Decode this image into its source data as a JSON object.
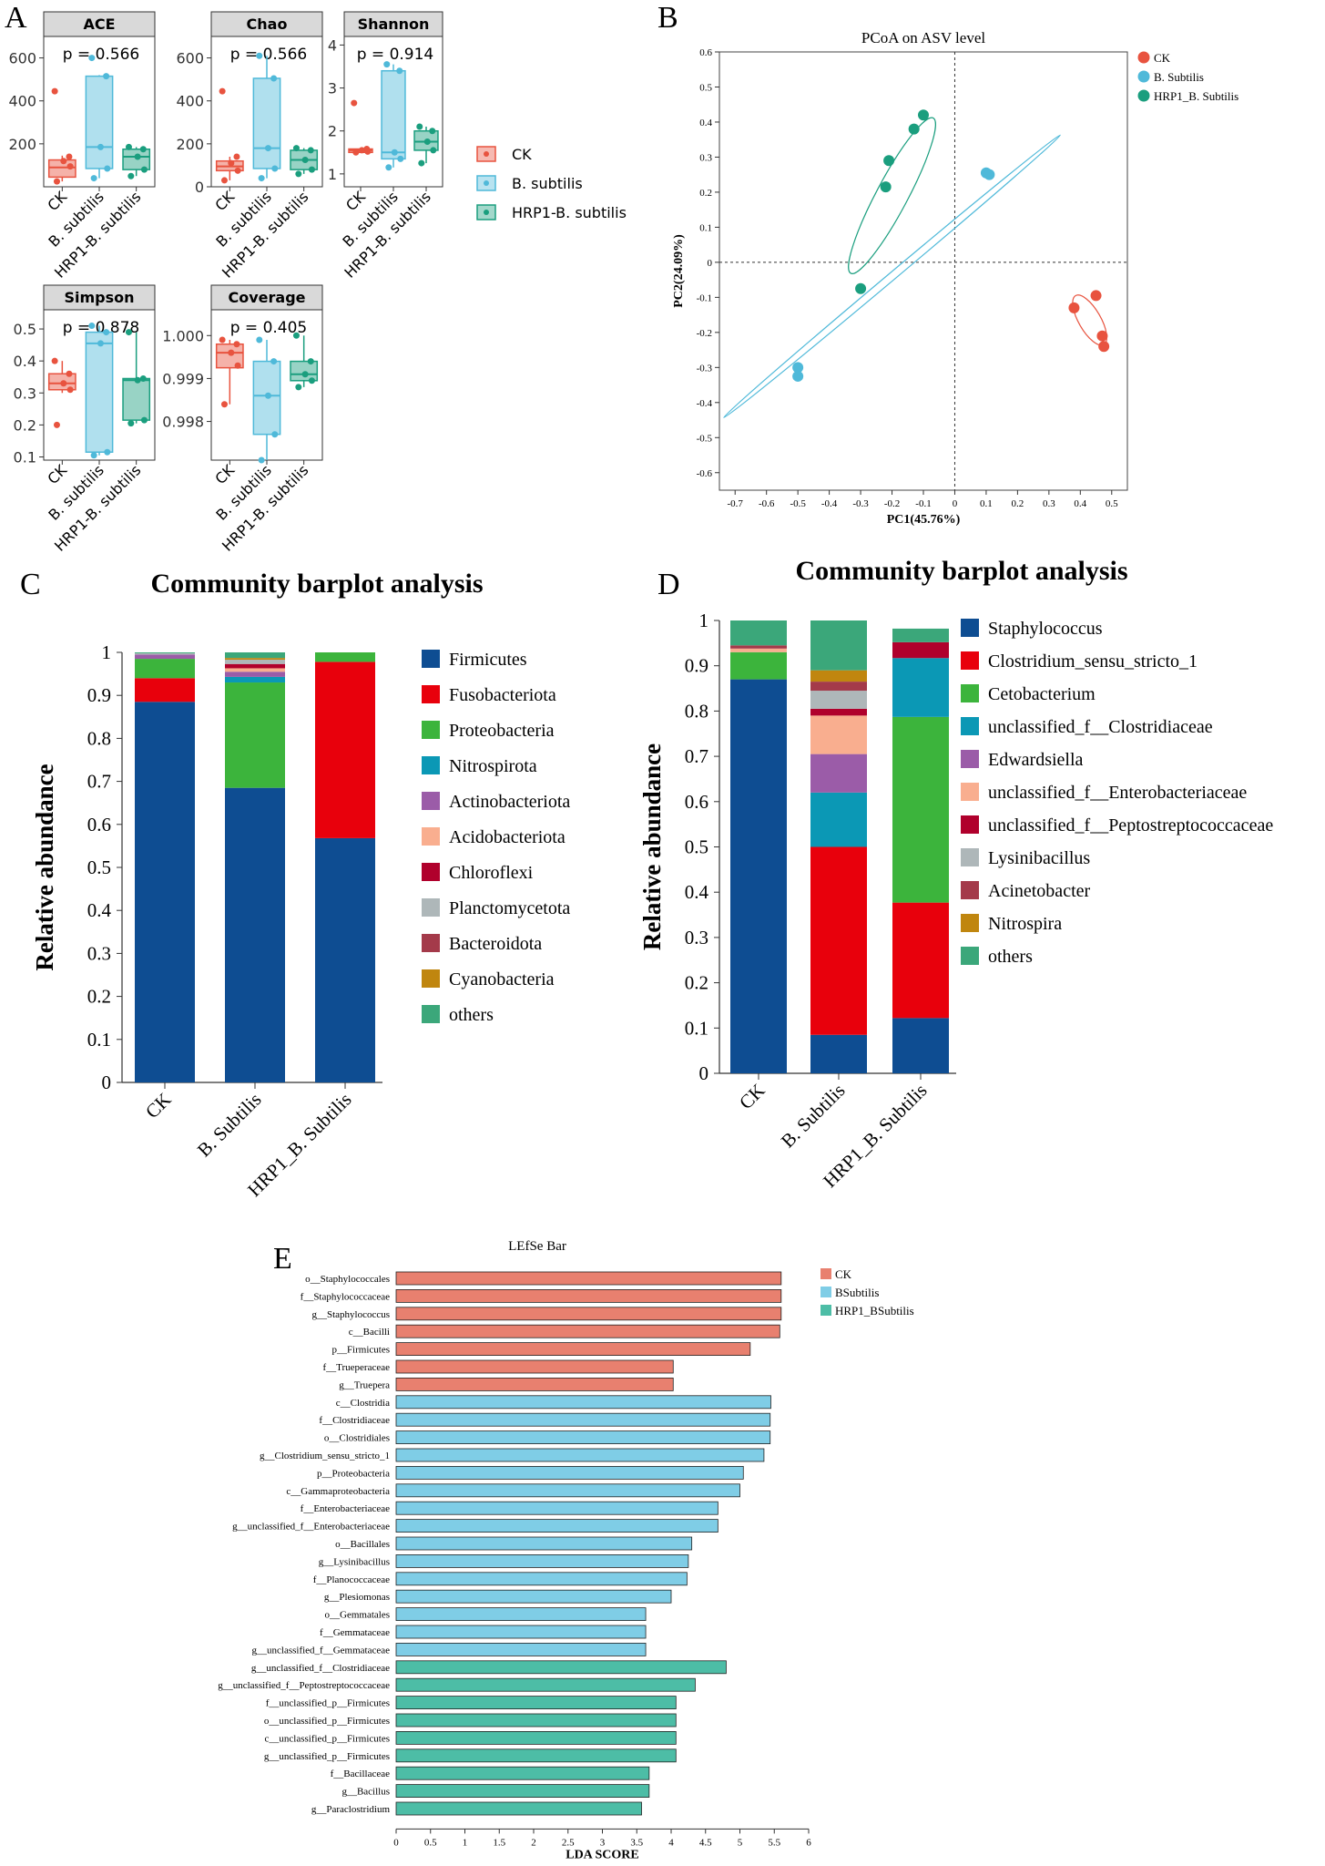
{
  "panel_labels": {
    "a": "A",
    "b": "B",
    "c": "C",
    "d": "D",
    "e": "E"
  },
  "group_colors": {
    "ck": "#E8533F",
    "bs": "#4FB9D9",
    "hrp1": "#1A9E7E"
  },
  "chart_data": [
    {
      "id": "A",
      "type": "box",
      "legend": {
        "entries": [
          "CK",
          "B. subtilis",
          "HRP1-B. subtilis"
        ]
      },
      "xticks": [
        "CK",
        "B. subtilis",
        "HRP1-B. subtilis"
      ],
      "panels": [
        {
          "title": "ACE",
          "pvalue": "p = 0.566",
          "yticks": [
            "200",
            "400",
            "600"
          ],
          "ylim": [
            0,
            700
          ],
          "boxes": [
            {
              "q1": 45,
              "med": 90,
              "q3": 125,
              "lo": 25,
              "hi": 145,
              "pts": [
                445,
                140,
                120,
                95,
                25
              ]
            },
            {
              "q1": 85,
              "med": 185,
              "q3": 515,
              "lo": 40,
              "hi": 520,
              "pts": [
                600,
                515,
                185,
                85,
                40
              ]
            },
            {
              "q1": 80,
              "med": 140,
              "q3": 175,
              "lo": 50,
              "hi": 185,
              "pts": [
                185,
                175,
                140,
                80,
                50
              ]
            }
          ]
        },
        {
          "title": "Chao",
          "pvalue": "p = 0.566",
          "yticks": [
            "0",
            "200",
            "400",
            "600"
          ],
          "ylim": [
            0,
            700
          ],
          "boxes": [
            {
              "q1": 75,
              "med": 95,
              "q3": 120,
              "lo": 30,
              "hi": 140,
              "pts": [
                445,
                140,
                110,
                75,
                30
              ]
            },
            {
              "q1": 85,
              "med": 180,
              "q3": 505,
              "lo": 40,
              "hi": 610,
              "pts": [
                610,
                505,
                180,
                85,
                40
              ]
            },
            {
              "q1": 80,
              "med": 125,
              "q3": 170,
              "lo": 60,
              "hi": 180,
              "pts": [
                180,
                170,
                125,
                80,
                60
              ]
            }
          ]
        },
        {
          "title": "Shannon",
          "pvalue": "p = 0.914",
          "yticks": [
            "1",
            "2",
            "3",
            "4"
          ],
          "ylim": [
            0.7,
            4.2
          ],
          "boxes": [
            {
              "q1": 1.5,
              "med": 1.55,
              "q3": 1.58,
              "lo": 1.5,
              "hi": 1.6,
              "pts": [
                2.65,
                1.58,
                1.55,
                1.52,
                1.5
              ]
            },
            {
              "q1": 1.35,
              "med": 1.5,
              "q3": 3.4,
              "lo": 1.15,
              "hi": 3.55,
              "pts": [
                3.55,
                3.4,
                1.5,
                1.35,
                1.15
              ]
            },
            {
              "q1": 1.55,
              "med": 1.75,
              "q3": 2.0,
              "lo": 1.25,
              "hi": 2.1,
              "pts": [
                2.1,
                2.0,
                1.75,
                1.55,
                1.25
              ]
            }
          ]
        },
        {
          "title": "Simpson",
          "pvalue": "p = 0.878",
          "yticks": [
            "0.1",
            "0.2",
            "0.3",
            "0.4",
            "0.5"
          ],
          "ylim": [
            0.09,
            0.56
          ],
          "boxes": [
            {
              "q1": 0.31,
              "med": 0.33,
              "q3": 0.36,
              "lo": 0.3,
              "hi": 0.4,
              "pts": [
                0.4,
                0.36,
                0.33,
                0.31,
                0.2
              ]
            },
            {
              "q1": 0.115,
              "med": 0.455,
              "q3": 0.49,
              "lo": 0.105,
              "hi": 0.51,
              "pts": [
                0.51,
                0.49,
                0.455,
                0.115,
                0.105
              ]
            },
            {
              "q1": 0.215,
              "med": 0.34,
              "q3": 0.345,
              "lo": 0.205,
              "hi": 0.49,
              "pts": [
                0.49,
                0.345,
                0.34,
                0.215,
                0.205
              ]
            }
          ]
        },
        {
          "title": "Coverage",
          "pvalue": "p = 0.405",
          "yticks": [
            "0.998",
            "0.999",
            "1.000"
          ],
          "ylim": [
            0.9971,
            1.0006
          ],
          "boxes": [
            {
              "q1": 0.99925,
              "med": 0.9996,
              "q3": 0.9998,
              "lo": 0.9984,
              "hi": 0.9999,
              "pts": [
                0.9999,
                0.9998,
                0.9996,
                0.9993,
                0.9984
              ]
            },
            {
              "q1": 0.9977,
              "med": 0.9986,
              "q3": 0.9994,
              "lo": 0.9971,
              "hi": 0.9999,
              "pts": [
                0.9999,
                0.9994,
                0.9986,
                0.9977,
                0.9971
              ]
            },
            {
              "q1": 0.99895,
              "med": 0.9991,
              "q3": 0.9994,
              "lo": 0.9988,
              "hi": 1.0,
              "pts": [
                1.0,
                0.9994,
                0.9991,
                0.99895,
                0.9988
              ]
            }
          ]
        }
      ]
    },
    {
      "id": "B",
      "type": "scatter",
      "title": "PCoA on ASV level",
      "xlabel": "PC1(45.76%)",
      "ylabel": "PC2(24.09%)",
      "xlim": [
        -0.75,
        0.55
      ],
      "ylim": [
        -0.65,
        0.6
      ],
      "xticks": [
        "-0.7",
        "-0.6",
        "-0.5",
        "-0.4",
        "-0.3",
        "-0.2",
        "-0.1",
        "0",
        "0.1",
        "0.2",
        "0.3",
        "0.4",
        "0.5"
      ],
      "yticks": [
        "-0.6",
        "-0.5",
        "-0.4",
        "-0.3",
        "-0.2",
        "-0.1",
        "0",
        "0.1",
        "0.2",
        "0.3",
        "0.4",
        "0.5",
        "0.6"
      ],
      "legend": [
        "CK",
        "B. Subtilis",
        "HRP1_B. Subtilis"
      ],
      "series": [
        {
          "name": "CK",
          "points": [
            [
              0.38,
              -0.13
            ],
            [
              0.45,
              -0.095
            ],
            [
              0.47,
              -0.21
            ],
            [
              0.475,
              -0.24
            ]
          ],
          "ellipse": {
            "cx": 0.43,
            "cy": -0.165,
            "rx": 0.09,
            "ry": 0.035,
            "angle": -60
          }
        },
        {
          "name": "B. Subtilis",
          "points": [
            [
              0.1,
              0.255
            ],
            [
              0.11,
              0.25
            ],
            [
              -0.5,
              -0.3
            ],
            [
              -0.5,
              -0.325
            ]
          ],
          "ellipse": {
            "cx": -0.2,
            "cy": -0.04,
            "rx": 0.7,
            "ry": 0.012,
            "angle": 40
          }
        },
        {
          "name": "HRP1_B. Subtilis",
          "points": [
            [
              -0.1,
              0.42
            ],
            [
              -0.13,
              0.38
            ],
            [
              -0.21,
              0.29
            ],
            [
              -0.22,
              0.215
            ],
            [
              -0.3,
              -0.075
            ]
          ],
          "ellipse": {
            "cx": -0.2,
            "cy": 0.19,
            "rx": 0.28,
            "ry": 0.05,
            "angle": 62
          }
        }
      ]
    },
    {
      "id": "C",
      "type": "bar",
      "stacked": true,
      "title": "Community barplot analysis",
      "ylabel": "Relative abundance",
      "ylim": [
        0,
        1
      ],
      "yticks": [
        "0",
        "0.1",
        "0.2",
        "0.3",
        "0.4",
        "0.5",
        "0.6",
        "0.7",
        "0.8",
        "0.9",
        "1"
      ],
      "categories": [
        "CK",
        "B. Subtilis",
        "HRP1_B. Subtilis"
      ],
      "series": [
        {
          "name": "Firmicutes",
          "color": "#0E4D92",
          "values": [
            0.885,
            0.685,
            0.568
          ]
        },
        {
          "name": "Fusobacteriota",
          "color": "#E8000C",
          "values": [
            0.055,
            0.0,
            0.41
          ]
        },
        {
          "name": "Proteobacteria",
          "color": "#3CB43C",
          "values": [
            0.045,
            0.245,
            0.022
          ]
        },
        {
          "name": "Nitrospirota",
          "color": "#0B98B5",
          "values": [
            0.0,
            0.013,
            0.0
          ]
        },
        {
          "name": "Actinobacteriota",
          "color": "#9B5CA8",
          "values": [
            0.01,
            0.012,
            0.0
          ]
        },
        {
          "name": "Acidobacteriota",
          "color": "#F9AE8F",
          "values": [
            0.0,
            0.008,
            0.0
          ]
        },
        {
          "name": "Chloroflexi",
          "color": "#B0002C",
          "values": [
            0.0,
            0.01,
            0.0
          ]
        },
        {
          "name": "Planctomycetota",
          "color": "#AEB7B9",
          "values": [
            0.003,
            0.01,
            0.0
          ]
        },
        {
          "name": "Bacteroidota",
          "color": "#A43A4A",
          "values": [
            0.0,
            0.0,
            0.0
          ]
        },
        {
          "name": "Cyanobacteria",
          "color": "#C0860F",
          "values": [
            0.0,
            0.004,
            0.0
          ]
        },
        {
          "name": "others",
          "color": "#3BA77A",
          "values": [
            0.002,
            0.013,
            0.0
          ]
        }
      ]
    },
    {
      "id": "D",
      "type": "bar",
      "stacked": true,
      "title": "Community barplot analysis",
      "ylabel": "Relative abundance",
      "ylim": [
        0,
        1
      ],
      "yticks": [
        "0",
        "0.1",
        "0.2",
        "0.3",
        "0.4",
        "0.5",
        "0.6",
        "0.7",
        "0.8",
        "0.9",
        "1"
      ],
      "categories": [
        "CK",
        "B. Subtilis",
        "HRP1_B. Subtilis"
      ],
      "series": [
        {
          "name": "Staphylococcus",
          "color": "#0E4D92",
          "values": [
            0.87,
            0.085,
            0.122
          ]
        },
        {
          "name": "Clostridium_sensu_stricto_1",
          "color": "#E8000C",
          "values": [
            0.0,
            0.415,
            0.255
          ]
        },
        {
          "name": "Cetobacterium",
          "color": "#3CB43C",
          "values": [
            0.06,
            0.0,
            0.41
          ]
        },
        {
          "name": "unclassified_f__Clostridiaceae",
          "color": "#0B98B5",
          "values": [
            0.0,
            0.12,
            0.13
          ]
        },
        {
          "name": "Edwardsiella",
          "color": "#9B5CA8",
          "values": [
            0.0,
            0.085,
            0.0
          ]
        },
        {
          "name": "unclassified_f__Enterobacteriaceae",
          "color": "#F9AE8F",
          "values": [
            0.008,
            0.085,
            0.0
          ]
        },
        {
          "name": "unclassified_f__Peptostreptococcaceae",
          "color": "#B0002C",
          "values": [
            0.0,
            0.015,
            0.035
          ]
        },
        {
          "name": "Lysinibacillus",
          "color": "#AEB7B9",
          "values": [
            0.0,
            0.04,
            0.0
          ]
        },
        {
          "name": "Acinetobacter",
          "color": "#A43A4A",
          "values": [
            0.007,
            0.02,
            0.0
          ]
        },
        {
          "name": "Nitrospira",
          "color": "#C0860F",
          "values": [
            0.0,
            0.025,
            0.0
          ]
        },
        {
          "name": "others",
          "color": "#3BA77A",
          "values": [
            0.055,
            0.11,
            0.03
          ]
        }
      ]
    },
    {
      "id": "E",
      "type": "bar",
      "orientation": "horizontal",
      "title": "LEfSe Bar",
      "xlabel": "LDA SCORE",
      "xlim": [
        0,
        6
      ],
      "xticks": [
        "0",
        "0.5",
        "1",
        "1.5",
        "2",
        "2.5",
        "3",
        "3.5",
        "4",
        "4.5",
        "5",
        "5.5",
        "6"
      ],
      "legend": [
        {
          "name": "CK",
          "color": "#E8806F"
        },
        {
          "name": "BSubtilis",
          "color": "#7FCDE6"
        },
        {
          "name": "HRP1_BSubtilis",
          "color": "#4DBDA6"
        }
      ],
      "bars": [
        {
          "label": "o__Staphylococcales",
          "value": 5.6,
          "group": 0
        },
        {
          "label": "f__Staphylococcaceae",
          "value": 5.6,
          "group": 0
        },
        {
          "label": "g__Staphylococcus",
          "value": 5.6,
          "group": 0
        },
        {
          "label": "c__Bacilli",
          "value": 5.58,
          "group": 0
        },
        {
          "label": "p__Firmicutes",
          "value": 5.15,
          "group": 0
        },
        {
          "label": "f__Trueperaceae",
          "value": 4.03,
          "group": 0
        },
        {
          "label": "g__Truepera",
          "value": 4.03,
          "group": 0
        },
        {
          "label": "c__Clostridia",
          "value": 5.45,
          "group": 1
        },
        {
          "label": "f__Clostridiaceae",
          "value": 5.44,
          "group": 1
        },
        {
          "label": "o__Clostridiales",
          "value": 5.44,
          "group": 1
        },
        {
          "label": "g__Clostridium_sensu_stricto_1",
          "value": 5.35,
          "group": 1
        },
        {
          "label": "p__Proteobacteria",
          "value": 5.05,
          "group": 1
        },
        {
          "label": "c__Gammaproteobacteria",
          "value": 5.0,
          "group": 1
        },
        {
          "label": "f__Enterobacteriaceae",
          "value": 4.68,
          "group": 1
        },
        {
          "label": "g__unclassified_f__Enterobacteriaceae",
          "value": 4.68,
          "group": 1
        },
        {
          "label": "o__Bacillales",
          "value": 4.3,
          "group": 1
        },
        {
          "label": "g__Lysinibacillus",
          "value": 4.25,
          "group": 1
        },
        {
          "label": "f__Planococcaceae",
          "value": 4.23,
          "group": 1
        },
        {
          "label": "g__Plesiomonas",
          "value": 4.0,
          "group": 1
        },
        {
          "label": "o__Gemmatales",
          "value": 3.63,
          "group": 1
        },
        {
          "label": "f__Gemmataceae",
          "value": 3.63,
          "group": 1
        },
        {
          "label": "g__unclassified_f__Gemmataceae",
          "value": 3.63,
          "group": 1
        },
        {
          "label": "g__unclassified_f__Clostridiaceae",
          "value": 4.8,
          "group": 2
        },
        {
          "label": "g__unclassified_f__Peptostreptococcaceae",
          "value": 4.35,
          "group": 2
        },
        {
          "label": "f__unclassified_p__Firmicutes",
          "value": 4.07,
          "group": 2
        },
        {
          "label": "o__unclassified_p__Firmicutes",
          "value": 4.07,
          "group": 2
        },
        {
          "label": "c__unclassified_p__Firmicutes",
          "value": 4.07,
          "group": 2
        },
        {
          "label": "g__unclassified_p__Firmicutes",
          "value": 4.07,
          "group": 2
        },
        {
          "label": "f__Bacillaceae",
          "value": 3.68,
          "group": 2
        },
        {
          "label": "g__Bacillus",
          "value": 3.68,
          "group": 2
        },
        {
          "label": "g__Paraclostridium",
          "value": 3.57,
          "group": 2
        }
      ]
    }
  ]
}
